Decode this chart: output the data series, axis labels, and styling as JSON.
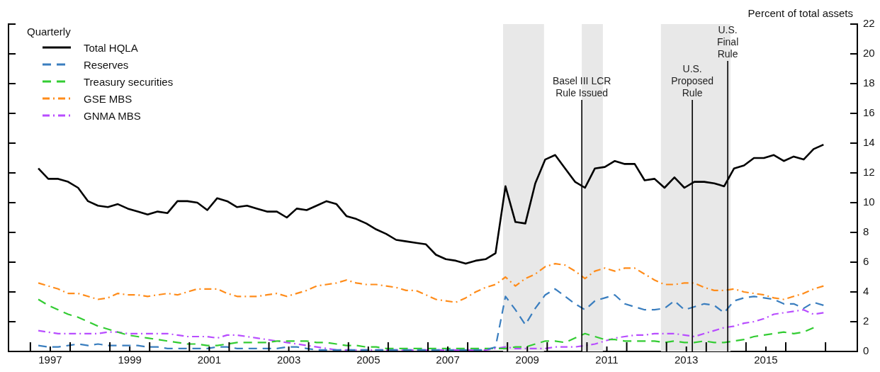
{
  "chart_data": {
    "type": "line",
    "ylabel": "Percent of total assets",
    "legend_title": "Quarterly",
    "legend": "top left",
    "grid": false,
    "marker": "none",
    "x": [
      1997.2,
      1997.45,
      1997.7,
      1997.95,
      1998.2,
      1998.45,
      1998.7,
      1998.95,
      1999.2,
      1999.45,
      1999.7,
      1999.95,
      2000.2,
      2000.45,
      2000.7,
      2000.95,
      2001.2,
      2001.45,
      2001.7,
      2001.95,
      2002.2,
      2002.45,
      2002.7,
      2002.95,
      2003.2,
      2003.45,
      2003.7,
      2003.95,
      2004.2,
      2004.45,
      2004.7,
      2004.95,
      2005.2,
      2005.45,
      2005.7,
      2005.95,
      2006.2,
      2006.45,
      2006.7,
      2006.95,
      2007.2,
      2007.45,
      2007.7,
      2007.95,
      2008.2,
      2008.45,
      2008.7,
      2008.95,
      2009.2,
      2009.45,
      2009.7,
      2009.95,
      2010.2,
      2010.45,
      2010.7,
      2010.95,
      2011.2,
      2011.45,
      2011.7,
      2011.95,
      2012.2,
      2012.45,
      2012.7,
      2012.95,
      2013.2,
      2013.45,
      2013.7,
      2013.95,
      2014.2,
      2014.45,
      2014.7,
      2014.95,
      2015.2,
      2015.45,
      2015.7,
      2015.95,
      2016.2,
      2016.45,
      2016.7,
      2016.95
    ],
    "xlim": [
      1996.45,
      2017.8
    ],
    "xticks": [
      {
        "value": 1997,
        "label": null
      },
      {
        "value": 1997.5,
        "label": "1997"
      },
      {
        "value": 1998,
        "label": null
      },
      {
        "value": 1999,
        "label": null
      },
      {
        "value": 1999.5,
        "label": "1999"
      },
      {
        "value": 2000,
        "label": null
      },
      {
        "value": 2001,
        "label": null
      },
      {
        "value": 2001.5,
        "label": "2001"
      },
      {
        "value": 2002,
        "label": null
      },
      {
        "value": 2003,
        "label": null
      },
      {
        "value": 2003.5,
        "label": "2003"
      },
      {
        "value": 2004,
        "label": null
      },
      {
        "value": 2005,
        "label": null
      },
      {
        "value": 2005.5,
        "label": "2005"
      },
      {
        "value": 2006,
        "label": null
      },
      {
        "value": 2007,
        "label": null
      },
      {
        "value": 2007.5,
        "label": "2007"
      },
      {
        "value": 2008,
        "label": null
      },
      {
        "value": 2009,
        "label": null
      },
      {
        "value": 2009.5,
        "label": "2009"
      },
      {
        "value": 2010,
        "label": null
      },
      {
        "value": 2011,
        "label": null
      },
      {
        "value": 2011.5,
        "label": "2011"
      },
      {
        "value": 2012,
        "label": null
      },
      {
        "value": 2013,
        "label": null
      },
      {
        "value": 2013.5,
        "label": "2013"
      },
      {
        "value": 2014,
        "label": null
      },
      {
        "value": 2015,
        "label": null
      },
      {
        "value": 2015.5,
        "label": "2015"
      },
      {
        "value": 2016,
        "label": null
      },
      {
        "value": 2017,
        "label": null
      }
    ],
    "ylim": [
      0,
      22
    ],
    "yticks": [
      0,
      2,
      4,
      6,
      8,
      10,
      12,
      14,
      16,
      18,
      20,
      22
    ],
    "bands": [
      {
        "axis": "x",
        "from": 2008.89,
        "to": 2009.92,
        "color": "#e8e8e8"
      },
      {
        "axis": "x",
        "from": 2010.87,
        "to": 2011.4,
        "color": "#e8e8e8"
      },
      {
        "axis": "x",
        "from": 2012.86,
        "to": 2014.61,
        "color": "#e8e8e8"
      }
    ],
    "ref_lines": [
      {
        "axis": "x",
        "value": 2010.87,
        "label": "Basel III LCR\nRule Issued",
        "color": "#000000"
      },
      {
        "axis": "x",
        "value": 2013.65,
        "label": "U.S.\nProposed\nRule",
        "color": "#000000"
      },
      {
        "axis": "x",
        "value": 2014.54,
        "label": "U.S.\nFinal\nRule",
        "color": "#000000"
      }
    ],
    "series": [
      {
        "name": "Total HQLA",
        "color": "#000000",
        "line_style": "solid",
        "values": [
          12.3,
          11.6,
          11.6,
          11.4,
          11.0,
          10.1,
          9.8,
          9.7,
          9.9,
          9.6,
          9.4,
          9.2,
          9.4,
          9.3,
          10.1,
          10.1,
          10.0,
          9.5,
          10.3,
          10.1,
          9.7,
          9.8,
          9.6,
          9.4,
          9.4,
          9.0,
          9.6,
          9.5,
          9.8,
          10.1,
          9.9,
          9.1,
          8.9,
          8.6,
          8.2,
          7.9,
          7.5,
          7.4,
          7.3,
          7.2,
          6.5,
          6.2,
          6.1,
          5.9,
          6.1,
          6.2,
          6.6,
          11.1,
          8.7,
          8.6,
          11.3,
          12.9,
          13.2,
          12.3,
          11.4,
          11.0,
          12.3,
          12.4,
          12.8,
          12.6,
          12.6,
          11.5,
          11.6,
          11.0,
          11.7,
          11.0,
          11.4,
          11.4,
          11.3,
          11.1,
          12.3,
          12.5,
          13.0,
          13.0,
          13.2,
          12.8,
          13.1,
          12.9,
          13.6,
          13.9
        ]
      },
      {
        "name": "Reserves",
        "color": "#3a7ebf",
        "line_style": "dashed",
        "values": [
          0.4,
          0.3,
          0.3,
          0.4,
          0.5,
          0.4,
          0.5,
          0.4,
          0.4,
          0.4,
          0.4,
          0.3,
          0.3,
          0.2,
          0.2,
          0.2,
          0.2,
          0.2,
          0.3,
          0.3,
          0.2,
          0.2,
          0.2,
          0.2,
          0.2,
          0.3,
          0.3,
          0.2,
          0.1,
          0.1,
          0.1,
          0.1,
          0.1,
          0.1,
          0.1,
          0.1,
          0.1,
          0.1,
          0.1,
          0.1,
          0.1,
          0.1,
          0.1,
          0.1,
          0.1,
          0.1,
          0.3,
          3.7,
          2.8,
          1.8,
          2.9,
          3.8,
          4.2,
          3.7,
          3.2,
          2.8,
          3.4,
          3.6,
          3.8,
          3.2,
          3.0,
          2.8,
          2.8,
          2.9,
          3.4,
          2.8,
          3.0,
          3.2,
          3.1,
          2.6,
          3.4,
          3.6,
          3.7,
          3.6,
          3.5,
          3.2,
          3.2,
          2.9,
          3.3,
          3.1
        ]
      },
      {
        "name": "Treasury securities",
        "color": "#33cc33",
        "line_style": "dashed",
        "values": [
          3.5,
          3.1,
          2.8,
          2.5,
          2.3,
          2.0,
          1.7,
          1.5,
          1.3,
          1.1,
          1.0,
          0.9,
          0.8,
          0.7,
          0.6,
          0.5,
          0.5,
          0.4,
          0.4,
          0.5,
          0.6,
          0.6,
          0.6,
          0.6,
          0.7,
          0.7,
          0.7,
          0.7,
          0.6,
          0.6,
          0.5,
          0.4,
          0.4,
          0.3,
          0.3,
          0.2,
          0.2,
          0.2,
          0.2,
          0.2,
          0.2,
          0.2,
          0.2,
          0.2,
          0.2,
          0.2,
          0.2,
          0.2,
          0.3,
          0.3,
          0.5,
          0.7,
          0.7,
          0.6,
          0.9,
          1.2,
          1.0,
          0.8,
          0.8,
          0.7,
          0.7,
          0.7,
          0.7,
          0.6,
          0.7,
          0.6,
          0.6,
          0.7,
          0.6,
          0.6,
          0.7,
          0.8,
          1.0,
          1.1,
          1.2,
          1.3,
          1.2,
          1.3,
          1.6,
          null
        ]
      },
      {
        "name": "GSE MBS",
        "color": "#ff8c1a",
        "line_style": "dashdot",
        "values": [
          4.6,
          4.4,
          4.2,
          3.9,
          3.9,
          3.7,
          3.5,
          3.6,
          3.9,
          3.8,
          3.8,
          3.7,
          3.8,
          3.9,
          3.8,
          4.0,
          4.2,
          4.2,
          4.2,
          3.9,
          3.7,
          3.7,
          3.7,
          3.8,
          3.9,
          3.7,
          3.9,
          4.1,
          4.4,
          4.5,
          4.6,
          4.8,
          4.6,
          4.5,
          4.5,
          4.4,
          4.3,
          4.1,
          4.1,
          3.8,
          3.5,
          3.4,
          3.3,
          3.6,
          4.0,
          4.3,
          4.5,
          5.0,
          4.4,
          4.9,
          5.2,
          5.7,
          5.9,
          5.8,
          5.4,
          4.9,
          5.4,
          5.6,
          5.4,
          5.6,
          5.6,
          5.2,
          4.8,
          4.5,
          4.5,
          4.6,
          4.6,
          4.3,
          4.1,
          4.1,
          4.2,
          4.0,
          3.9,
          3.8,
          3.6,
          3.5,
          3.7,
          3.9,
          4.2,
          4.4
        ]
      },
      {
        "name": "GNMA MBS",
        "color": "#b84dff",
        "line_style": "dashdot",
        "values": [
          1.4,
          1.3,
          1.2,
          1.2,
          1.2,
          1.2,
          1.2,
          1.3,
          1.3,
          1.2,
          1.2,
          1.2,
          1.2,
          1.2,
          1.1,
          1.0,
          1.0,
          1.0,
          0.9,
          1.1,
          1.1,
          1.0,
          0.9,
          0.8,
          0.7,
          0.6,
          0.5,
          0.4,
          0.3,
          0.2,
          0.1,
          0.1,
          0.1,
          0.1,
          0.1,
          0.1,
          0.1,
          0.1,
          0.1,
          0.1,
          0.1,
          0.1,
          0.1,
          0.1,
          0.1,
          0.1,
          0.2,
          0.3,
          0.2,
          0.2,
          0.2,
          0.2,
          0.3,
          0.3,
          0.3,
          0.4,
          0.5,
          0.7,
          0.9,
          1.0,
          1.1,
          1.1,
          1.2,
          1.2,
          1.2,
          1.1,
          1.0,
          1.2,
          1.4,
          1.6,
          1.7,
          1.9,
          2.0,
          2.2,
          2.5,
          2.6,
          2.7,
          2.8,
          2.5,
          2.6
        ]
      }
    ]
  }
}
